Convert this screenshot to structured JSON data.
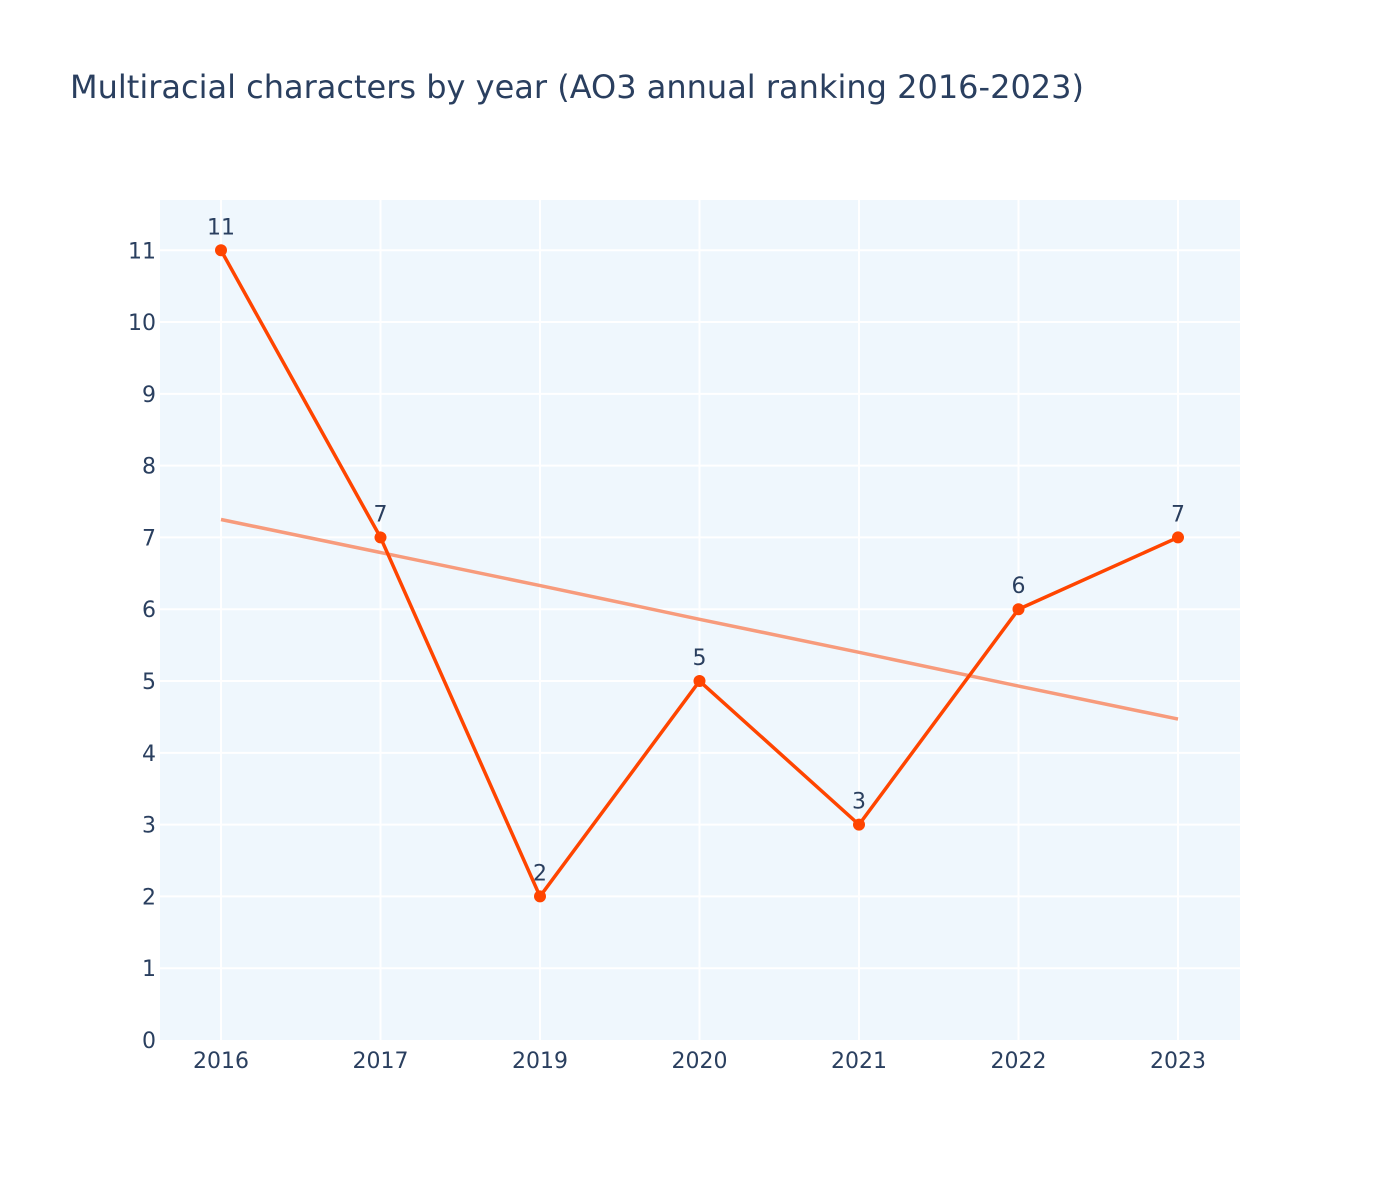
{
  "chart_data": {
    "type": "line",
    "title": "Multiracial characters by year (AO3 annual ranking 2016-2023)",
    "xlabel": "",
    "ylabel": "",
    "categories": [
      "2016",
      "2017",
      "2019",
      "2020",
      "2021",
      "2022",
      "2023"
    ],
    "series": [
      {
        "values": [
          11,
          7,
          2,
          5,
          3,
          6,
          7
        ],
        "color": "#ff4500",
        "markers": true,
        "data_labels": true
      },
      {
        "type": "trendline",
        "values": [
          7.25,
          6.79,
          6.33,
          5.86,
          5.4,
          4.93,
          4.47
        ],
        "color": "#f79b7c"
      }
    ],
    "y_ticks": [
      0,
      1,
      2,
      3,
      4,
      5,
      6,
      7,
      8,
      9,
      10,
      11
    ],
    "ylim": [
      0,
      11.7
    ],
    "grid": true,
    "plot_bgcolor": "#eff7fd",
    "text_color": "#2a3f5f"
  }
}
